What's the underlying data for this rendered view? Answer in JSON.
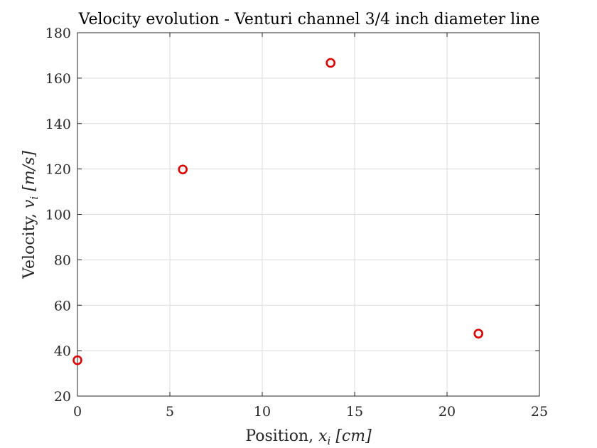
{
  "chart_data": {
    "type": "scatter",
    "title": "Velocity evolution - Venturi channel 3/4 inch diameter line",
    "xlabel_text": "Position, ",
    "xlabel_var": "x",
    "xlabel_sub": "i",
    "xlabel_unit": " [cm]",
    "ylabel_text": "Velocity, ",
    "ylabel_var": "v",
    "ylabel_sub": "i",
    "ylabel_unit": " [m/s]",
    "xlim": [
      0,
      25
    ],
    "ylim": [
      20,
      180
    ],
    "xticks": [
      "0",
      "5",
      "10",
      "15",
      "20",
      "25"
    ],
    "yticks": [
      "20",
      "40",
      "60",
      "80",
      "100",
      "120",
      "140",
      "160",
      "180"
    ],
    "grid": true,
    "marker": "circle-open",
    "marker_color": "#d90000",
    "series": [
      {
        "x": [
          0,
          5.7,
          13.7,
          21.7
        ],
        "y": [
          35.8,
          119.8,
          166.7,
          47.5
        ]
      }
    ]
  }
}
